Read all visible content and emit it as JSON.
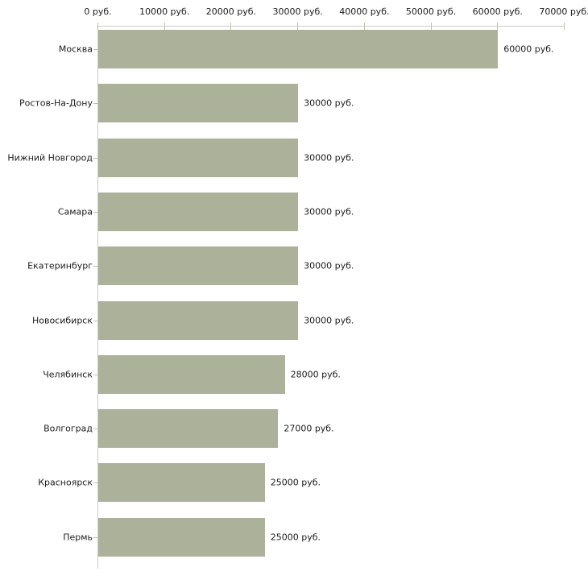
{
  "chart_data": {
    "type": "bar",
    "orientation": "horizontal",
    "title": "",
    "xlabel": "",
    "ylabel": "",
    "unit_suffix": " руб.",
    "categories": [
      "Москва",
      "Ростов-На-Дону",
      "Нижний Новгород",
      "Самара",
      "Екатеринбург",
      "Новосибирск",
      "Челябинск",
      "Волгоград",
      "Красноярск",
      "Пермь"
    ],
    "values": [
      60000,
      30000,
      30000,
      30000,
      30000,
      30000,
      28000,
      27000,
      25000,
      25000
    ],
    "value_labels": [
      "60000 руб.",
      "30000 руб.",
      "30000 руб.",
      "30000 руб.",
      "30000 руб.",
      "30000 руб.",
      "28000 руб.",
      "27000 руб.",
      "25000 руб.",
      "25000 руб."
    ],
    "x_axis": {
      "min": 0,
      "max": 70000,
      "tick_interval": 10000,
      "tick_values": [
        0,
        10000,
        20000,
        30000,
        40000,
        50000,
        60000,
        70000
      ],
      "tick_labels": [
        "0 руб.",
        "10000 руб.",
        "20000 руб.",
        "30000 руб.",
        "40000 руб.",
        "50000 руб.",
        "60000 руб.",
        "70000 руб."
      ]
    },
    "grid": false,
    "legend": "none",
    "colors": {
      "bar_fill": "#abb299",
      "axis_line": "#cccccc",
      "tick_mark": "#c2c2a8",
      "text": "#1c1c1c",
      "background": "#ffffff"
    }
  }
}
